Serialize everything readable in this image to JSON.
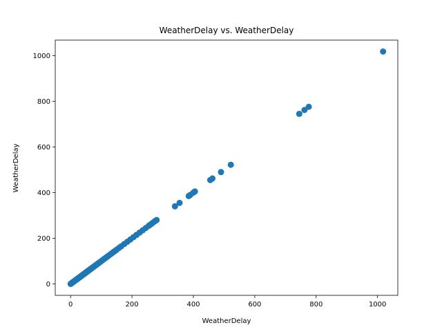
{
  "chart_data": {
    "type": "scatter",
    "title": "WeatherDelay vs. WeatherDelay",
    "xlabel": "WeatherDelay",
    "ylabel": "WeatherDelay",
    "xlim": [
      -50,
      1066
    ],
    "ylim": [
      -50,
      1068
    ],
    "xticks": [
      0,
      200,
      400,
      600,
      800,
      1000
    ],
    "yticks": [
      0,
      200,
      400,
      600,
      800,
      1000
    ],
    "xtick_labels": [
      "0",
      "200",
      "400",
      "600",
      "800",
      "1000"
    ],
    "ytick_labels": [
      "0",
      "200",
      "400",
      "600",
      "800",
      "1000"
    ],
    "grid": false,
    "legend": "none",
    "marker_color": "#1f77b4",
    "series": [
      {
        "x": [
          0,
          1,
          2,
          3,
          4,
          5,
          6,
          7,
          8,
          9,
          10,
          11,
          12,
          13,
          14,
          15,
          16,
          17,
          18,
          19,
          20,
          21,
          22,
          23,
          24,
          25,
          26,
          27,
          28,
          29,
          30,
          31,
          32,
          33,
          34,
          35,
          36,
          37,
          38,
          39,
          40,
          41,
          42,
          43,
          44,
          45,
          46,
          47,
          48,
          49,
          50,
          51,
          52,
          53,
          54,
          55,
          56,
          57,
          58,
          59,
          60,
          61,
          62,
          63,
          64,
          65,
          66,
          67,
          68,
          69,
          70,
          72,
          74,
          76,
          78,
          80,
          82,
          84,
          86,
          88,
          90,
          93,
          96,
          99,
          102,
          105,
          108,
          111,
          114,
          117,
          120,
          125,
          130,
          135,
          140,
          145,
          150,
          158,
          165,
          175,
          185,
          195,
          205,
          215,
          225,
          235,
          245,
          255,
          260,
          265,
          270,
          275,
          280,
          340,
          355,
          385,
          390,
          400,
          405,
          455,
          462,
          490,
          522,
          745,
          762,
          776,
          1018
        ],
        "y": [
          0,
          1,
          2,
          3,
          4,
          5,
          6,
          7,
          8,
          9,
          10,
          11,
          12,
          13,
          14,
          15,
          16,
          17,
          18,
          19,
          20,
          21,
          22,
          23,
          24,
          25,
          26,
          27,
          28,
          29,
          30,
          31,
          32,
          33,
          34,
          35,
          36,
          37,
          38,
          39,
          40,
          41,
          42,
          43,
          44,
          45,
          46,
          47,
          48,
          49,
          50,
          51,
          52,
          53,
          54,
          55,
          56,
          57,
          58,
          59,
          60,
          61,
          62,
          63,
          64,
          65,
          66,
          67,
          68,
          69,
          70,
          72,
          74,
          76,
          78,
          80,
          82,
          84,
          86,
          88,
          90,
          93,
          96,
          99,
          102,
          105,
          108,
          111,
          114,
          117,
          120,
          125,
          130,
          135,
          140,
          145,
          150,
          158,
          165,
          175,
          185,
          195,
          205,
          215,
          225,
          235,
          245,
          255,
          260,
          265,
          270,
          275,
          280,
          340,
          355,
          385,
          390,
          400,
          405,
          455,
          462,
          490,
          522,
          745,
          762,
          776,
          1018
        ]
      }
    ]
  }
}
